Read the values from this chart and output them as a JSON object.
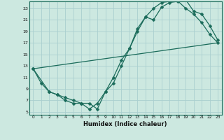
{
  "xlabel": "Humidex (Indice chaleur)",
  "bg_color": "#cce8e0",
  "line_color": "#1a6b5a",
  "grid_color": "#aacfcf",
  "xlim": [
    -0.5,
    23.5
  ],
  "ylim": [
    4.5,
    24.2
  ],
  "xticks": [
    0,
    1,
    2,
    3,
    4,
    5,
    6,
    7,
    8,
    9,
    10,
    11,
    12,
    13,
    14,
    15,
    16,
    17,
    18,
    19,
    20,
    21,
    22,
    23
  ],
  "yticks": [
    5,
    7,
    9,
    11,
    13,
    15,
    17,
    19,
    21,
    23
  ],
  "curve1_x": [
    0,
    1,
    2,
    3,
    4,
    5,
    6,
    7,
    8,
    9,
    10,
    11,
    12,
    13,
    14,
    15,
    16,
    17,
    18,
    19,
    20,
    21,
    22,
    23
  ],
  "curve1_y": [
    12.5,
    10.0,
    8.5,
    8.0,
    7.0,
    6.5,
    6.5,
    5.5,
    6.5,
    8.5,
    11.0,
    14.0,
    16.0,
    19.0,
    21.5,
    21.0,
    23.2,
    24.0,
    24.2,
    24.5,
    22.5,
    22.0,
    20.0,
    17.5
  ],
  "curve2_x": [
    0,
    2,
    3,
    4,
    5,
    6,
    7,
    8,
    9,
    10,
    11,
    12,
    13,
    14,
    15,
    16,
    17,
    18,
    19,
    20,
    21,
    22,
    23
  ],
  "curve2_y": [
    12.5,
    8.5,
    8.0,
    7.5,
    7.0,
    6.5,
    6.5,
    5.5,
    8.5,
    10.0,
    13.0,
    16.0,
    19.5,
    21.5,
    23.0,
    24.0,
    24.2,
    24.3,
    23.0,
    22.0,
    20.5,
    18.5,
    17.0
  ],
  "curve3_x": [
    0,
    23
  ],
  "curve3_y": [
    12.5,
    17.0
  ]
}
